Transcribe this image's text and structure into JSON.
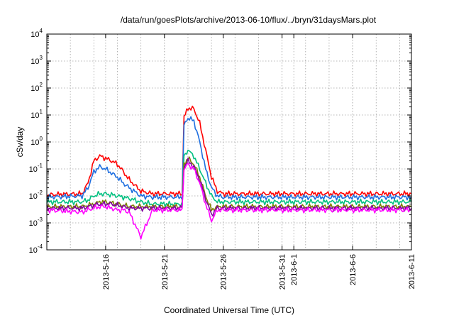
{
  "chart_data": {
    "type": "line",
    "title": "/data/run/goesPlots/archive/2013-06-10/flux/../bryn/31daysMars.plot",
    "xlabel": "Coordinated Universal Time (UTC)",
    "ylabel": "cSv/day",
    "y_scale": "log",
    "ylim": [
      0.0001,
      10000
    ],
    "xlim": [
      "2013-05-11",
      "2013-06-11"
    ],
    "grid": true,
    "y_ticks": [
      {
        "base": "10",
        "exp": "-4",
        "value": 0.0001
      },
      {
        "base": "10",
        "exp": "-3",
        "value": 0.001
      },
      {
        "base": "10",
        "exp": "-2",
        "value": 0.01
      },
      {
        "base": "10",
        "exp": "-1",
        "value": 0.1
      },
      {
        "base": "10",
        "exp": "0",
        "value": 1
      },
      {
        "base": "10",
        "exp": "1",
        "value": 10
      },
      {
        "base": "10",
        "exp": "2",
        "value": 100
      },
      {
        "base": "10",
        "exp": "3",
        "value": 1000
      },
      {
        "base": "10",
        "exp": "4",
        "value": 10000
      }
    ],
    "x_ticks": [
      "2013-5-16",
      "2013-5-21",
      "2013-5-26",
      "2013-5-31",
      "2013-6-1",
      "2013-6-6",
      "2013-6-11"
    ],
    "x_tick_dates": [
      "2013-05-16",
      "2013-05-21",
      "2013-05-26",
      "2013-05-31",
      "2013-06-01",
      "2013-06-06",
      "2013-06-11"
    ],
    "x": [
      "2013-05-11",
      "2013-05-14",
      "2013-05-14T12:00",
      "2013-05-15",
      "2013-05-15T12:00",
      "2013-05-16",
      "2013-05-16T12:00",
      "2013-05-17",
      "2013-05-17T12:00",
      "2013-05-18",
      "2013-05-19",
      "2013-05-20",
      "2013-05-22",
      "2013-05-22T12:00",
      "2013-05-22T16:00",
      "2013-05-23",
      "2013-05-23T12:00",
      "2013-05-24",
      "2013-05-24T12:00",
      "2013-05-25",
      "2013-05-25T12:00",
      "2013-05-26",
      "2013-05-28",
      "2013-05-30",
      "2013-06-01",
      "2013-06-05",
      "2013-06-08",
      "2013-06-11"
    ],
    "series": [
      {
        "color": "#ff0000",
        "values": [
          0.011,
          0.012,
          0.03,
          0.2,
          0.3,
          0.25,
          0.2,
          0.15,
          0.08,
          0.04,
          0.015,
          0.012,
          0.012,
          0.012,
          8,
          18,
          17,
          5,
          0.5,
          0.05,
          0.015,
          0.012,
          0.012,
          0.012,
          0.012,
          0.012,
          0.012,
          0.012
        ]
      },
      {
        "color": "#1f6fe0",
        "values": [
          0.009,
          0.01,
          0.02,
          0.08,
          0.12,
          0.1,
          0.07,
          0.05,
          0.03,
          0.02,
          0.01,
          0.009,
          0.009,
          0.009,
          4,
          8,
          6,
          1,
          0.1,
          0.02,
          0.01,
          0.009,
          0.009,
          0.009,
          0.009,
          0.009,
          0.009,
          0.009
        ]
      },
      {
        "color": "#00c080",
        "values": [
          0.006,
          0.006,
          0.007,
          0.01,
          0.012,
          0.012,
          0.011,
          0.01,
          0.009,
          0.008,
          0.006,
          0.005,
          0.005,
          0.005,
          0.3,
          0.5,
          0.3,
          0.1,
          0.03,
          0.01,
          0.006,
          0.006,
          0.006,
          0.006,
          0.006,
          0.006,
          0.006,
          0.006
        ]
      },
      {
        "color": "#808000",
        "values": [
          0.004,
          0.004,
          0.0045,
          0.005,
          0.006,
          0.006,
          0.0055,
          0.005,
          0.0045,
          0.004,
          0.004,
          0.004,
          0.004,
          0.004,
          0.15,
          0.25,
          0.15,
          0.05,
          0.01,
          0.003,
          0.004,
          0.004,
          0.004,
          0.004,
          0.004,
          0.004,
          0.004,
          0.004
        ]
      },
      {
        "color": "#8000a0",
        "values": [
          0.0035,
          0.0035,
          0.004,
          0.0045,
          0.005,
          0.005,
          0.005,
          0.0045,
          0.004,
          0.0035,
          0.0035,
          0.0035,
          0.0035,
          0.0035,
          0.12,
          0.2,
          0.12,
          0.04,
          0.008,
          0.002,
          0.0035,
          0.0035,
          0.0035,
          0.0035,
          0.0035,
          0.0035,
          0.0035,
          0.0035
        ]
      },
      {
        "color": "#ff00ff",
        "values": [
          0.003,
          0.0025,
          0.003,
          0.0035,
          0.004,
          0.004,
          0.0035,
          0.003,
          0.003,
          0.0025,
          0.0003,
          0.003,
          0.003,
          0.003,
          0.1,
          0.15,
          0.1,
          0.03,
          0.005,
          0.0012,
          0.003,
          0.003,
          0.003,
          0.003,
          0.003,
          0.003,
          0.003,
          0.003
        ]
      }
    ]
  }
}
